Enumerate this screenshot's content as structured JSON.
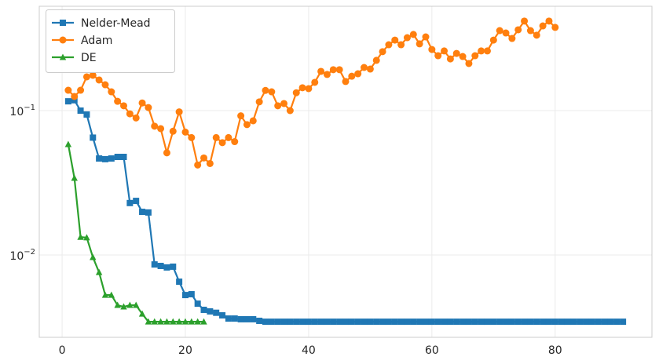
{
  "chart_data": {
    "type": "line",
    "title": "",
    "xlabel": "",
    "ylabel": "",
    "yscale": "log",
    "xlim": [
      -3.7,
      95.7
    ],
    "ylim": [
      0.00269,
      0.528
    ],
    "grid": true,
    "legend_position": "top-left",
    "x_ticks": [
      0,
      20,
      40,
      60,
      80
    ],
    "x_tick_labels": [
      "0",
      "20",
      "40",
      "60",
      "80"
    ],
    "y_ticks": [
      0.1,
      0.01
    ],
    "y_tick_labels": [
      {
        "base": "10",
        "exp": "−1"
      },
      {
        "base": "10",
        "exp": "−2"
      }
    ],
    "series": [
      {
        "name": "Nelder-Mead",
        "color": "#1f77b4",
        "marker": "square",
        "values": [
          0.116,
          0.118,
          0.1,
          0.094,
          0.065,
          0.0466,
          0.0461,
          0.0466,
          0.0478,
          0.0478,
          0.0229,
          0.0237,
          0.0199,
          0.0197,
          0.0086,
          0.0084,
          0.0082,
          0.0083,
          0.00653,
          0.00528,
          0.00535,
          0.0046,
          0.00417,
          0.00407,
          0.00398,
          0.00382,
          0.00363,
          0.00363,
          0.00359,
          0.00359,
          0.00359,
          0.0035,
          0.00345,
          0.00345,
          0.00345,
          0.00345,
          0.00345,
          0.00345,
          0.00345,
          0.00345,
          0.00345,
          0.00345,
          0.00345,
          0.00345,
          0.00345,
          0.00345,
          0.00345,
          0.00345,
          0.00345,
          0.00345,
          0.00345,
          0.00345,
          0.00345,
          0.00345,
          0.00345,
          0.00345,
          0.00345,
          0.00345,
          0.00345,
          0.00345,
          0.00345,
          0.00345,
          0.00345,
          0.00345,
          0.00345,
          0.00345,
          0.00345,
          0.00345,
          0.00345,
          0.00345,
          0.00345,
          0.00345,
          0.00345,
          0.00345,
          0.00345,
          0.00345,
          0.00345,
          0.00345,
          0.00345,
          0.00345,
          0.00345,
          0.00345,
          0.00345,
          0.00345,
          0.00345,
          0.00345,
          0.00345,
          0.00345,
          0.00345,
          0.00345,
          0.00345
        ]
      },
      {
        "name": "Adam",
        "color": "#ff7f0e",
        "marker": "circle",
        "values": [
          0.1384,
          0.1253,
          0.1384,
          0.1713,
          0.1757,
          0.163,
          0.151,
          0.135,
          0.116,
          0.108,
          0.095,
          0.089,
          0.113,
          0.105,
          0.078,
          0.075,
          0.051,
          0.072,
          0.098,
          0.071,
          0.065,
          0.042,
          0.047,
          0.043,
          0.065,
          0.06,
          0.065,
          0.061,
          0.092,
          0.08,
          0.085,
          0.115,
          0.138,
          0.135,
          0.108,
          0.112,
          0.1,
          0.133,
          0.144,
          0.142,
          0.157,
          0.187,
          0.178,
          0.192,
          0.192,
          0.159,
          0.173,
          0.18,
          0.199,
          0.194,
          0.223,
          0.256,
          0.286,
          0.308,
          0.286,
          0.32,
          0.337,
          0.29,
          0.324,
          0.265,
          0.24,
          0.259,
          0.228,
          0.249,
          0.237,
          0.212,
          0.24,
          0.259,
          0.259,
          0.308,
          0.358,
          0.345,
          0.316,
          0.363,
          0.417,
          0.358,
          0.333,
          0.386,
          0.417,
          0.377
        ]
      },
      {
        "name": "DE",
        "color": "#2ca02c",
        "marker": "triangle",
        "values": [
          0.0584,
          0.0341,
          0.0133,
          0.0132,
          0.00964,
          0.00759,
          0.00528,
          0.00528,
          0.00449,
          0.00438,
          0.00449,
          0.00449,
          0.00391,
          0.00345,
          0.00345,
          0.00345,
          0.00345,
          0.00345,
          0.00345,
          0.00345,
          0.00345,
          0.00345,
          0.00345
        ]
      }
    ]
  }
}
